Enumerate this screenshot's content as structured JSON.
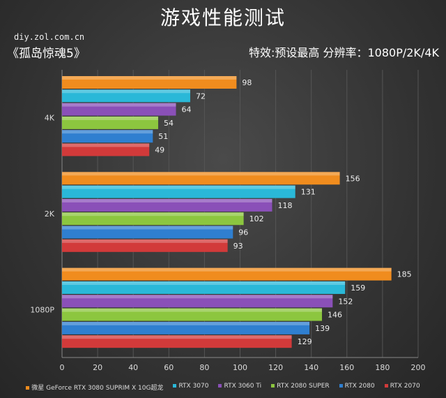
{
  "header": {
    "title": "游戏性能测试",
    "site": "diy.zol.com.cn",
    "game": "《孤岛惊魂5》",
    "settings": "特效:预设最高   分辨率：1080P/2K/4K"
  },
  "chart_data": {
    "type": "bar",
    "orientation": "horizontal",
    "categories": [
      "4K",
      "2K",
      "1080P"
    ],
    "xlim": [
      0,
      200
    ],
    "xticks": [
      0,
      20,
      40,
      60,
      80,
      100,
      120,
      140,
      160,
      180,
      200
    ],
    "grid": true,
    "legend_position": "bottom",
    "series": [
      {
        "name": "微星 GeForce RTX 3080 SUPRIM X 10G超龙",
        "color": "#f08c1e",
        "values": [
          98,
          156,
          185
        ]
      },
      {
        "name": "RTX 3070",
        "color": "#2ab8d8",
        "values": [
          72,
          131,
          159
        ]
      },
      {
        "name": "RTX 3060 Ti",
        "color": "#8a50b8",
        "values": [
          64,
          118,
          152
        ]
      },
      {
        "name": "RTX 2080 SUPER",
        "color": "#8cc63f",
        "values": [
          54,
          102,
          146
        ]
      },
      {
        "name": "RTX 2080",
        "color": "#2f7fd0",
        "values": [
          51,
          96,
          139
        ]
      },
      {
        "name": "RTX 2070",
        "color": "#d23a3a",
        "values": [
          49,
          93,
          129
        ]
      }
    ]
  }
}
